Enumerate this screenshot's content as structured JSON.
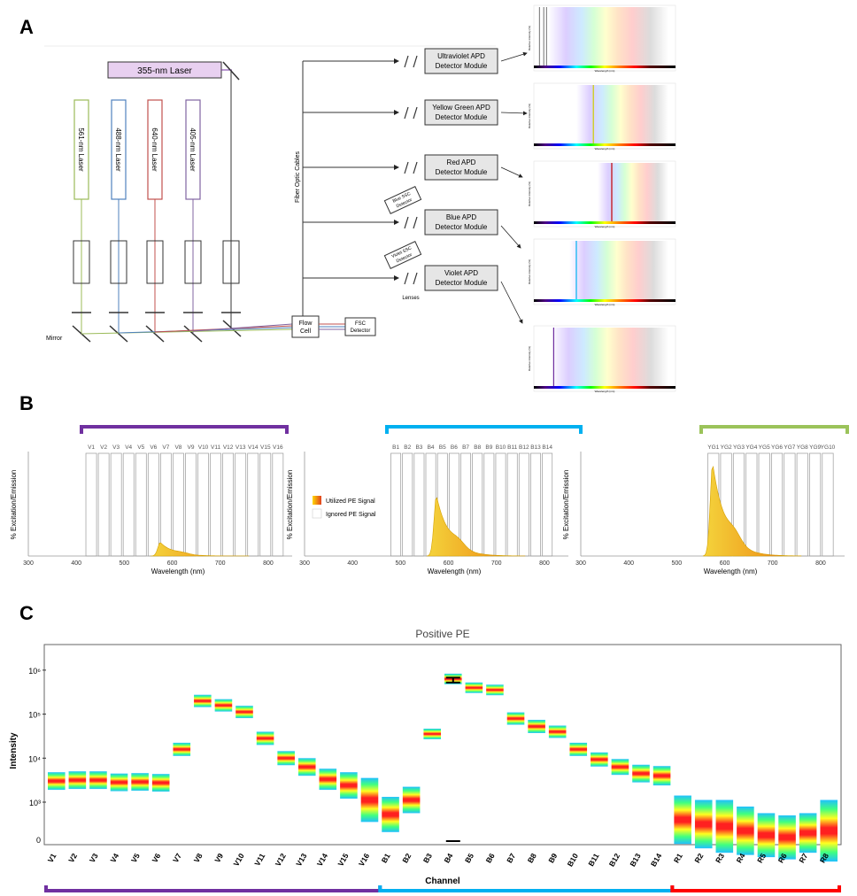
{
  "panels": {
    "a": "A",
    "b": "B",
    "c": "C"
  },
  "colors": {
    "violet": "#7030a0",
    "blue": "#00b0f0",
    "green": "#9bc35a",
    "red": "#ff0000",
    "pe": "#f2d21b"
  },
  "panel_a": {
    "uv_laser": "355-nm Laser",
    "lasers": [
      {
        "label": "561-nm Laser",
        "color": "#9bbb59"
      },
      {
        "label": "488-nm Laser",
        "color": "#4f81bd"
      },
      {
        "label": "640-nm Laser",
        "color": "#c0504d"
      },
      {
        "label": "405-nm Laser",
        "color": "#8064a2"
      }
    ],
    "mirror": "Mirror",
    "flow_cell": [
      "Flow",
      "Cell"
    ],
    "fsc": [
      "FSC",
      "Detector"
    ],
    "fiber": "Fiber Optic Cables",
    "lenses": "Lenses",
    "blue_ssc": [
      "Blue SSC",
      "Detector"
    ],
    "violet_ssc": [
      "Violet SSC",
      "Detector"
    ],
    "modules": [
      {
        "line1": "Ultraviolet APD",
        "line2": "Detector Module"
      },
      {
        "line1": "Yellow Green APD",
        "line2": "Detector Module"
      },
      {
        "line1": "Red APD",
        "line2": "Detector Module"
      },
      {
        "line1": "Blue APD",
        "line2": "Detector Module"
      },
      {
        "line1": "Violet APD",
        "line2": "Detector Module"
      }
    ],
    "mini_ylabel": "Relative intensity (%)",
    "mini_xlabel": "Wavelength (nm)"
  },
  "panel_b": {
    "ylabel": "% Excitation/Emission",
    "xlabel": "Wavelength (nm)",
    "xticks": [
      300,
      400,
      500,
      600,
      700,
      800
    ],
    "legend_utilized": "Utilized PE Signal",
    "legend_ignored": "Ignored PE Signal",
    "charts": [
      {
        "name": "violet",
        "channels": [
          "V1",
          "V2",
          "V3",
          "V4",
          "V5",
          "V6",
          "V7",
          "V8",
          "V9",
          "V10",
          "V11",
          "V12",
          "V13",
          "V14",
          "V15",
          "V16"
        ],
        "peak": 0.14
      },
      {
        "name": "blue",
        "channels": [
          "B1",
          "B2",
          "B3",
          "B4",
          "B5",
          "B6",
          "B7",
          "B8",
          "B9",
          "B10",
          "B11",
          "B12",
          "B13",
          "B14"
        ],
        "peak": 0.62
      },
      {
        "name": "yellow-green",
        "channels": [
          "YG1",
          "YG2",
          "YG3",
          "YG4",
          "YG5",
          "YG6",
          "YG7",
          "YG8",
          "YG9",
          "YG10"
        ],
        "peak": 0.95
      }
    ]
  },
  "chart_data": {
    "type": "heatmap",
    "title": "Positive PE",
    "xlabel": "Channel",
    "ylabel": "Intensity",
    "yscale": "log",
    "ytick_labels": [
      "10⁶",
      "10⁵",
      "10⁴",
      "10³",
      "0"
    ],
    "categories": [
      "V1",
      "V2",
      "V3",
      "V4",
      "V5",
      "V6",
      "V7",
      "V8",
      "V9",
      "V10",
      "V11",
      "V12",
      "V13",
      "V14",
      "V15",
      "V16",
      "B1",
      "B2",
      "B3",
      "B4",
      "B5",
      "B6",
      "B7",
      "B8",
      "B9",
      "B10",
      "B11",
      "B12",
      "B13",
      "B14",
      "R1",
      "R2",
      "R3",
      "R4",
      "R5",
      "R6",
      "R7",
      "R8"
    ],
    "median_log10": [
      3.48,
      3.5,
      3.5,
      3.45,
      3.46,
      3.44,
      4.2,
      5.3,
      5.2,
      5.05,
      4.45,
      4.0,
      3.8,
      3.52,
      3.38,
      3.05,
      2.72,
      3.05,
      4.55,
      5.8,
      5.6,
      5.55,
      4.9,
      4.72,
      4.6,
      4.2,
      3.97,
      3.8,
      3.65,
      3.6,
      2.6,
      2.5,
      2.45,
      2.35,
      2.25,
      2.2,
      2.3,
      2.35
    ],
    "spread_log10": [
      0.2,
      0.2,
      0.2,
      0.2,
      0.2,
      0.2,
      0.15,
      0.14,
      0.14,
      0.14,
      0.15,
      0.16,
      0.2,
      0.24,
      0.3,
      0.5,
      0.4,
      0.3,
      0.12,
      0.12,
      0.12,
      0.12,
      0.14,
      0.15,
      0.14,
      0.15,
      0.16,
      0.18,
      0.2,
      0.22,
      0.55,
      0.55,
      0.6,
      0.55,
      0.5,
      0.5,
      0.45,
      0.7
    ]
  }
}
